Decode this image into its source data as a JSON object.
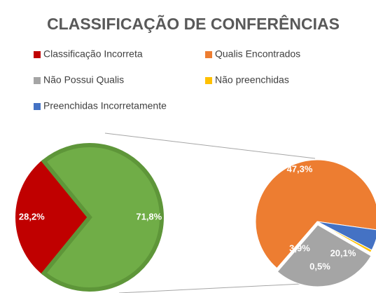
{
  "chart_data": {
    "type": "pie_of_pie",
    "title": "CLASSIFICAÇÃO DE CONFERÊNCIAS",
    "series": [
      {
        "name": "Classificação Incorreta",
        "color": "#c00000",
        "value": 28.2,
        "value_label": "28,2%",
        "plot": "primary"
      },
      {
        "name": "Qualis Encontrados",
        "color": "#ed7d31",
        "value": 47.3,
        "value_label": "47,3%",
        "plot": "secondary"
      },
      {
        "name": "Não Possui Qualis",
        "color": "#a5a5a5",
        "value": 20.1,
        "value_label": "20,1%",
        "plot": "secondary"
      },
      {
        "name": "Não preenchidas",
        "color": "#ffc000",
        "value": 0.5,
        "value_label": "0,5%",
        "plot": "secondary"
      },
      {
        "name": "Preenchidas Incorretamente",
        "color": "#4472c4",
        "value": 3.9,
        "value_label": "3,9%",
        "plot": "secondary"
      }
    ],
    "other_value": 71.8,
    "other_value_label": "71,8%",
    "other_color": "#70ad47",
    "legend": "top"
  }
}
